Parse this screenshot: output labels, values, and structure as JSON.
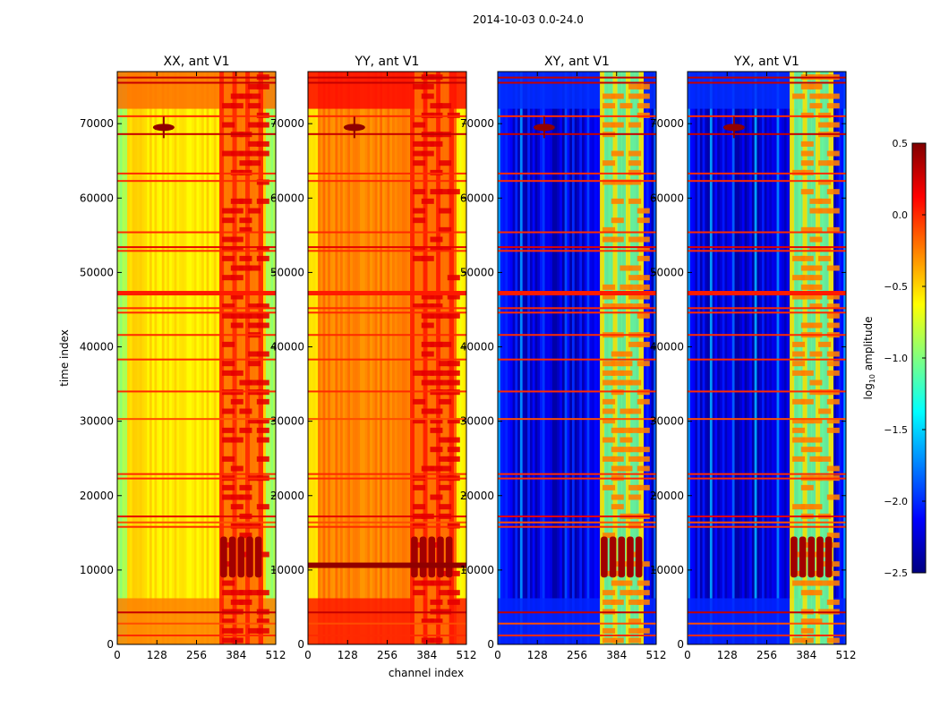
{
  "figure": {
    "suptitle": "2014-10-03 0.0-24.0",
    "xlabel": "channel index",
    "ylabel": "time index",
    "colorbar_label": "log",
    "colorbar_label_sub": "10",
    "colorbar_label_tail": " amplitude"
  },
  "chart_data": {
    "type": "heatmap",
    "title": "2014-10-03 0.0-24.0",
    "xlabel": "channel index",
    "ylabel": "time index",
    "xlim": [
      0,
      512
    ],
    "ylim": [
      0,
      77000
    ],
    "xticks": [
      0,
      128,
      256,
      384,
      512
    ],
    "yticks": [
      0,
      10000,
      20000,
      30000,
      40000,
      50000,
      60000,
      70000
    ],
    "colorbar": {
      "label": "log10 amplitude",
      "range": [
        -2.5,
        0.5
      ],
      "ticks": [
        0.5,
        0.0,
        -0.5,
        -1.0,
        -1.5,
        -2.0,
        -2.5
      ],
      "tick_labels": [
        "0.5",
        "0.0",
        "−0.5",
        "−1.0",
        "−1.5",
        "−2.0",
        "−2.5"
      ]
    },
    "panels": [
      {
        "title": "XX, ant V1",
        "kind": "auto",
        "base_level": -0.55
      },
      {
        "title": "YY, ant V1",
        "kind": "auto",
        "base_level": -0.25
      },
      {
        "title": "XY, ant V1",
        "kind": "cross",
        "base_level": -2.2
      },
      {
        "title": "YX, ant V1",
        "kind": "cross",
        "base_level": -2.2
      }
    ],
    "rfi_time_bands": [
      {
        "t": 1200,
        "level": 0.0
      },
      {
        "t": 2800,
        "level": -0.1
      },
      {
        "t": 4300,
        "level": 0.3
      },
      {
        "t": 15800,
        "level": 0.0
      },
      {
        "t": 16400,
        "level": -0.1
      },
      {
        "t": 17200,
        "level": 0.2
      },
      {
        "t": 22300,
        "level": 0.0
      },
      {
        "t": 22900,
        "level": 0.0
      },
      {
        "t": 30300,
        "level": -0.1
      },
      {
        "t": 34000,
        "level": 0.0
      },
      {
        "t": 38300,
        "level": 0.0
      },
      {
        "t": 41600,
        "level": 0.0
      },
      {
        "t": 44600,
        "level": 0.0
      },
      {
        "t": 45200,
        "level": 0.0
      },
      {
        "t": 47400,
        "level": 0.05
      },
      {
        "t": 52900,
        "level": 0.0
      },
      {
        "t": 53400,
        "level": 0.2
      },
      {
        "t": 55400,
        "level": 0.0
      },
      {
        "t": 62300,
        "level": 0.0
      },
      {
        "t": 63300,
        "level": 0.0
      },
      {
        "t": 68600,
        "level": 0.3
      },
      {
        "t": 71000,
        "level": 0.0
      },
      {
        "t": 75500,
        "level": 0.3
      },
      {
        "t": 76200,
        "level": 0.3
      }
    ],
    "rfi_channel_band": [
      330,
      470
    ],
    "bright_block": {
      "t_start": 9000,
      "t_end": 14500,
      "ch_start": 330,
      "ch_end": 470,
      "level": 0.4
    },
    "elevated_blocks": [
      {
        "t_start": 0,
        "t_end": 6200,
        "delta": 0.3
      },
      {
        "t_start": 72000,
        "t_end": 77000,
        "delta": 0.35
      }
    ]
  }
}
